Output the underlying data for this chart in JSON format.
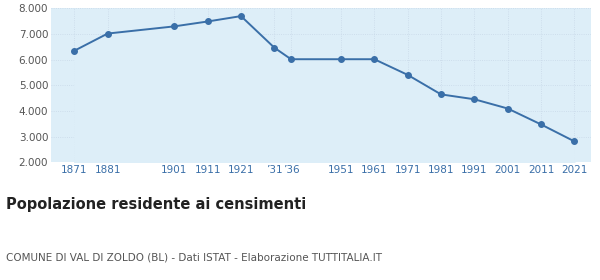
{
  "years": [
    1871,
    1881,
    1901,
    1911,
    1921,
    1931,
    1936,
    1951,
    1961,
    1971,
    1981,
    1991,
    2001,
    2011,
    2021
  ],
  "population": [
    6350,
    7020,
    7300,
    7490,
    7700,
    6470,
    6020,
    6020,
    6020,
    5410,
    4650,
    4460,
    4100,
    3480,
    2820
  ],
  "line_color": "#3a6fa8",
  "fill_color": "#ddeef8",
  "marker": "o",
  "marker_size": 4,
  "ylim": [
    2000,
    8000
  ],
  "yticks": [
    2000,
    3000,
    4000,
    5000,
    6000,
    7000,
    8000
  ],
  "x_tick_positions": [
    1871,
    1881,
    1901,
    1911,
    1921,
    1931,
    1936,
    1951,
    1961,
    1971,
    1981,
    1991,
    2001,
    2011,
    2021
  ],
  "x_tick_labels": [
    "1871",
    "1881",
    "1901",
    "1911",
    "1921",
    "’31",
    "’36",
    "1951",
    "1961",
    "1971",
    "1981",
    "1991",
    "2001",
    "2011",
    "2021"
  ],
  "title": "Popolazione residente ai censimenti",
  "subtitle": "COMUNE DI VAL DI ZOLDO (BL) - Dati ISTAT - Elaborazione TUTTITALIA.IT",
  "title_fontsize": 10.5,
  "subtitle_fontsize": 7.5,
  "background_color": "#ffffff",
  "grid_color": "#c8d8e8",
  "xlim": [
    1864,
    2026
  ]
}
